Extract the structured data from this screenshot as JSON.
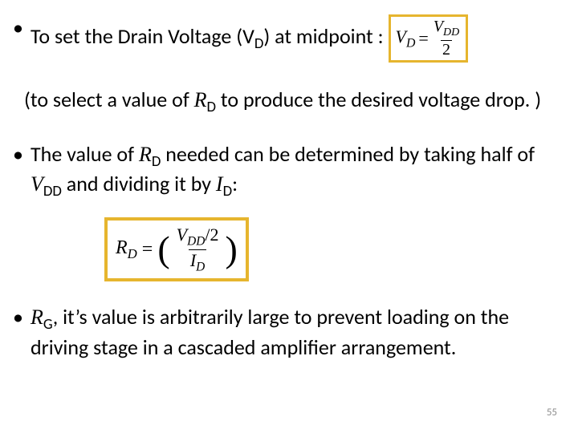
{
  "colors": {
    "border": "#e6b52e",
    "text": "#000000",
    "bg": "#ffffff",
    "page_num": "#8c8c8c"
  },
  "bullet1": {
    "pre": "To set the Drain Voltage (V",
    "vd_sub": "D",
    "post": ") at midpoint :"
  },
  "bullet1_cont": {
    "pre": "(to select a value of ",
    "rd": "R",
    "rd_sub": "D",
    "post": " to produce the desired voltage drop. )"
  },
  "eq1": {
    "lhs_v": "V",
    "lhs_sub": "D",
    "eq": "=",
    "num_v": "V",
    "num_sub": "DD",
    "den": "2"
  },
  "bullet2": {
    "pre": "The value of ",
    "rd": "R",
    "rd_sub": "D",
    "mid": " needed can be determined by taking half of ",
    "vdd": "V",
    "vdd_sub": "DD",
    "mid2": " and dividing it by ",
    "id": "I",
    "id_sub": "D",
    "end": ":"
  },
  "eq2": {
    "lhs_r": "R",
    "lhs_sub": "D",
    "eq": "=",
    "num_v": "V",
    "num_sub": "DD",
    "num_tail": "/2",
    "den_i": "I",
    "den_sub": "D"
  },
  "bullet3": {
    "rg": "R",
    "rg_sub": "G",
    "rest": ", it’s value is arbitrarily large to prevent loading on the driving stage in a cascaded amplifier arrangement."
  },
  "page_number": "55"
}
